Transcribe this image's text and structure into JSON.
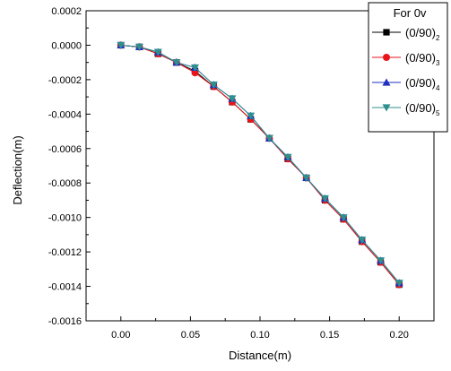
{
  "chart_data": {
    "type": "line",
    "xlabel": "Distance(m)",
    "ylabel": "Deflection(m)",
    "xlim": [
      -0.025,
      0.225
    ],
    "ylim": [
      -0.0016,
      0.0002
    ],
    "x_ticks": [
      "0.00",
      "0.05",
      "0.10",
      "0.15",
      "0.20"
    ],
    "x_tick_values": [
      0,
      0.05,
      0.1,
      0.15,
      0.2
    ],
    "y_ticks": [
      "0.0002",
      "0.0000",
      "-0.0002",
      "-0.0004",
      "-0.0006",
      "-0.0008",
      "-0.0010",
      "-0.0012",
      "-0.0014",
      "-0.0016"
    ],
    "y_tick_values": [
      0.0002,
      0,
      -0.0002,
      -0.0004,
      -0.0006,
      -0.0008,
      -0.001,
      -0.0012,
      -0.0014,
      -0.0016
    ],
    "grid": false,
    "legend_position": "top-right",
    "legend_title": "For 0v",
    "x": [
      0,
      0.0133,
      0.0267,
      0.04,
      0.0533,
      0.0667,
      0.08,
      0.0933,
      0.1067,
      0.12,
      0.1333,
      0.1467,
      0.16,
      0.1733,
      0.1867,
      0.2
    ],
    "series": [
      {
        "name_base": "(0/90)",
        "name_sub": "2",
        "marker": "square",
        "color": "#000000",
        "values": [
          0,
          -1e-05,
          -5e-05,
          -0.0001,
          -0.00015,
          -0.00024,
          -0.00033,
          -0.00043,
          -0.00054,
          -0.00066,
          -0.00077,
          -0.0009,
          -0.00101,
          -0.00114,
          -0.00126,
          -0.00139
        ]
      },
      {
        "name_base": "(0/90)",
        "name_sub": "3",
        "marker": "circle",
        "color": "#e8141a",
        "values": [
          0,
          -1e-05,
          -5e-05,
          -0.0001,
          -0.00016,
          -0.00024,
          -0.00033,
          -0.00043,
          -0.00054,
          -0.00066,
          -0.00077,
          -0.0009,
          -0.00101,
          -0.00114,
          -0.00126,
          -0.00139
        ]
      },
      {
        "name_base": "(0/90)",
        "name_sub": "4",
        "marker": "triangle-up",
        "color": "#1f2fbf",
        "values": [
          0,
          -1e-05,
          -4e-05,
          -0.0001,
          -0.00013,
          -0.00023,
          -0.00031,
          -0.00041,
          -0.00054,
          -0.00065,
          -0.00077,
          -0.00089,
          -0.001,
          -0.00113,
          -0.00125,
          -0.00138
        ]
      },
      {
        "name_base": "(0/90)",
        "name_sub": "5",
        "marker": "triangle-down",
        "color": "#2f8f8f",
        "values": [
          0,
          -1e-05,
          -4e-05,
          -0.0001,
          -0.00013,
          -0.00023,
          -0.00031,
          -0.00041,
          -0.00054,
          -0.00065,
          -0.00077,
          -0.00089,
          -0.001,
          -0.00113,
          -0.00125,
          -0.00138
        ]
      }
    ]
  }
}
